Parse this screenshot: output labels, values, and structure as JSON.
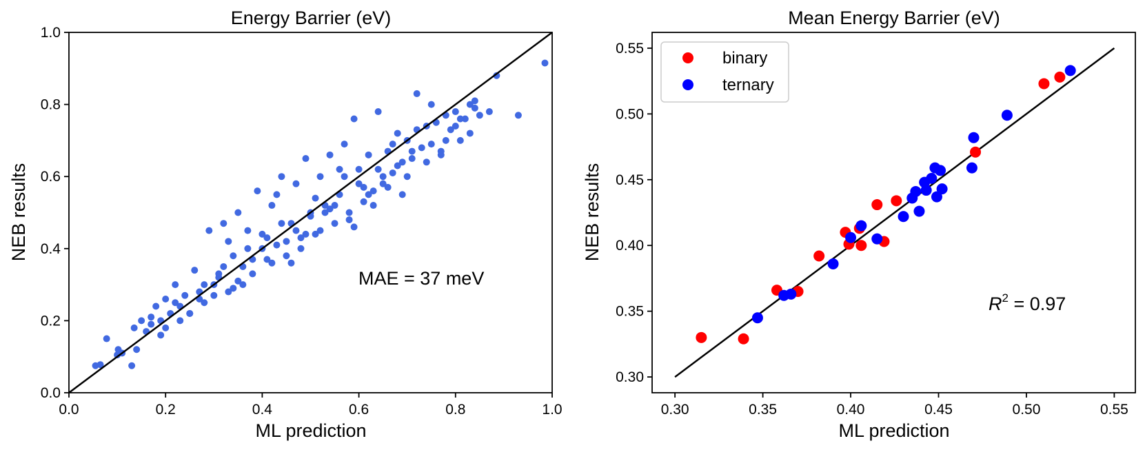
{
  "chart_data": [
    {
      "type": "scatter",
      "title": "Energy Barrier (eV)",
      "xlabel": "ML prediction",
      "ylabel": "NEB results",
      "xlim": [
        0.0,
        1.0
      ],
      "ylim": [
        0.0,
        1.0
      ],
      "xticks": [
        "0.0",
        "0.2",
        "0.4",
        "0.6",
        "0.8",
        "1.0"
      ],
      "yticks": [
        "0.0",
        "0.2",
        "0.4",
        "0.6",
        "0.8",
        "1.0"
      ],
      "annotation": "MAE = 37 meV",
      "color": "#4169e1",
      "reference_line": {
        "x": [
          0.0,
          1.0
        ],
        "y": [
          0.0,
          1.0
        ],
        "color": "#000000"
      },
      "grid": false,
      "series": [
        {
          "x": [
            0.055,
            0.065,
            0.078,
            0.1,
            0.102,
            0.11,
            0.13,
            0.135,
            0.14,
            0.15,
            0.16,
            0.17,
            0.18,
            0.19,
            0.2,
            0.21,
            0.22,
            0.23,
            0.24,
            0.25,
            0.26,
            0.27,
            0.28,
            0.29,
            0.3,
            0.31,
            0.32,
            0.33,
            0.34,
            0.35,
            0.36,
            0.37,
            0.38,
            0.39,
            0.4,
            0.41,
            0.42,
            0.43,
            0.44,
            0.45,
            0.46,
            0.47,
            0.48,
            0.49,
            0.5,
            0.51,
            0.52,
            0.53,
            0.54,
            0.55,
            0.56,
            0.57,
            0.58,
            0.59,
            0.6,
            0.61,
            0.62,
            0.63,
            0.64,
            0.65,
            0.66,
            0.67,
            0.68,
            0.69,
            0.7,
            0.71,
            0.72,
            0.73,
            0.74,
            0.75,
            0.76,
            0.77,
            0.78,
            0.79,
            0.8,
            0.81,
            0.82,
            0.83,
            0.84,
            0.85,
            0.87,
            0.885,
            0.93,
            0.985,
            0.2,
            0.22,
            0.25,
            0.28,
            0.3,
            0.32,
            0.35,
            0.38,
            0.4,
            0.42,
            0.45,
            0.48,
            0.5,
            0.52,
            0.55,
            0.58,
            0.6,
            0.62,
            0.65,
            0.68,
            0.7,
            0.72,
            0.75,
            0.78,
            0.8,
            0.83,
            0.17,
            0.19,
            0.23,
            0.27,
            0.31,
            0.34,
            0.37,
            0.41,
            0.44,
            0.47,
            0.51,
            0.54,
            0.57,
            0.61,
            0.64,
            0.67,
            0.71,
            0.74,
            0.77,
            0.81,
            0.84,
            0.33,
            0.36,
            0.43,
            0.46,
            0.49,
            0.53,
            0.56,
            0.59,
            0.63,
            0.66,
            0.69
          ],
          "y": [
            0.075,
            0.078,
            0.15,
            0.105,
            0.12,
            0.11,
            0.075,
            0.18,
            0.12,
            0.2,
            0.17,
            0.21,
            0.24,
            0.16,
            0.26,
            0.22,
            0.3,
            0.2,
            0.27,
            0.22,
            0.34,
            0.28,
            0.25,
            0.45,
            0.3,
            0.33,
            0.47,
            0.28,
            0.38,
            0.5,
            0.35,
            0.45,
            0.33,
            0.56,
            0.4,
            0.37,
            0.52,
            0.41,
            0.6,
            0.38,
            0.47,
            0.58,
            0.43,
            0.65,
            0.5,
            0.44,
            0.6,
            0.52,
            0.66,
            0.47,
            0.55,
            0.69,
            0.5,
            0.76,
            0.58,
            0.53,
            0.66,
            0.56,
            0.78,
            0.6,
            0.67,
            0.61,
            0.72,
            0.55,
            0.7,
            0.65,
            0.83,
            0.68,
            0.64,
            0.8,
            0.75,
            0.67,
            0.77,
            0.73,
            0.78,
            0.7,
            0.76,
            0.8,
            0.79,
            0.77,
            0.78,
            0.88,
            0.77,
            0.915,
            0.18,
            0.25,
            0.22,
            0.3,
            0.27,
            0.35,
            0.31,
            0.37,
            0.44,
            0.36,
            0.42,
            0.4,
            0.49,
            0.45,
            0.52,
            0.48,
            0.62,
            0.55,
            0.58,
            0.63,
            0.6,
            0.73,
            0.69,
            0.7,
            0.74,
            0.72,
            0.19,
            0.2,
            0.24,
            0.26,
            0.32,
            0.29,
            0.4,
            0.43,
            0.47,
            0.45,
            0.54,
            0.51,
            0.6,
            0.57,
            0.62,
            0.69,
            0.67,
            0.74,
            0.66,
            0.76,
            0.81,
            0.42,
            0.3,
            0.55,
            0.36,
            0.44,
            0.5,
            0.62,
            0.46,
            0.52,
            0.57,
            0.64
          ]
        }
      ]
    },
    {
      "type": "scatter",
      "title": "Mean Energy Barrier (eV)",
      "xlabel": "ML prediction",
      "ylabel": "NEB results",
      "xlim": [
        0.287,
        0.562
      ],
      "ylim": [
        0.288,
        0.562
      ],
      "xticks": [
        "0.30",
        "0.35",
        "0.40",
        "0.45",
        "0.50",
        "0.55"
      ],
      "yticks": [
        "0.30",
        "0.35",
        "0.40",
        "0.45",
        "0.50",
        "0.55"
      ],
      "annotation": {
        "base": "R",
        "sup": "2",
        "rest": " = 0.97"
      },
      "reference_line": {
        "x": [
          0.3,
          0.55
        ],
        "y": [
          0.3,
          0.55
        ],
        "color": "#000000"
      },
      "legend": {
        "position": "top-left"
      },
      "grid": false,
      "series": [
        {
          "name": "binary",
          "color": "#ff0000",
          "x": [
            0.315,
            0.339,
            0.358,
            0.37,
            0.382,
            0.397,
            0.399,
            0.405,
            0.406,
            0.415,
            0.419,
            0.426,
            0.471,
            0.51,
            0.519
          ],
          "y": [
            0.33,
            0.329,
            0.366,
            0.365,
            0.392,
            0.41,
            0.401,
            0.413,
            0.4,
            0.431,
            0.403,
            0.434,
            0.471,
            0.523,
            0.528
          ]
        },
        {
          "name": "ternary",
          "color": "#0000ff",
          "x": [
            0.347,
            0.362,
            0.366,
            0.39,
            0.4,
            0.406,
            0.415,
            0.43,
            0.435,
            0.437,
            0.439,
            0.442,
            0.443,
            0.446,
            0.448,
            0.449,
            0.451,
            0.452,
            0.469,
            0.47,
            0.489,
            0.525
          ],
          "y": [
            0.345,
            0.362,
            0.363,
            0.386,
            0.406,
            0.415,
            0.405,
            0.422,
            0.436,
            0.441,
            0.426,
            0.448,
            0.442,
            0.451,
            0.459,
            0.437,
            0.457,
            0.443,
            0.459,
            0.482,
            0.499,
            0.533
          ]
        }
      ]
    }
  ]
}
